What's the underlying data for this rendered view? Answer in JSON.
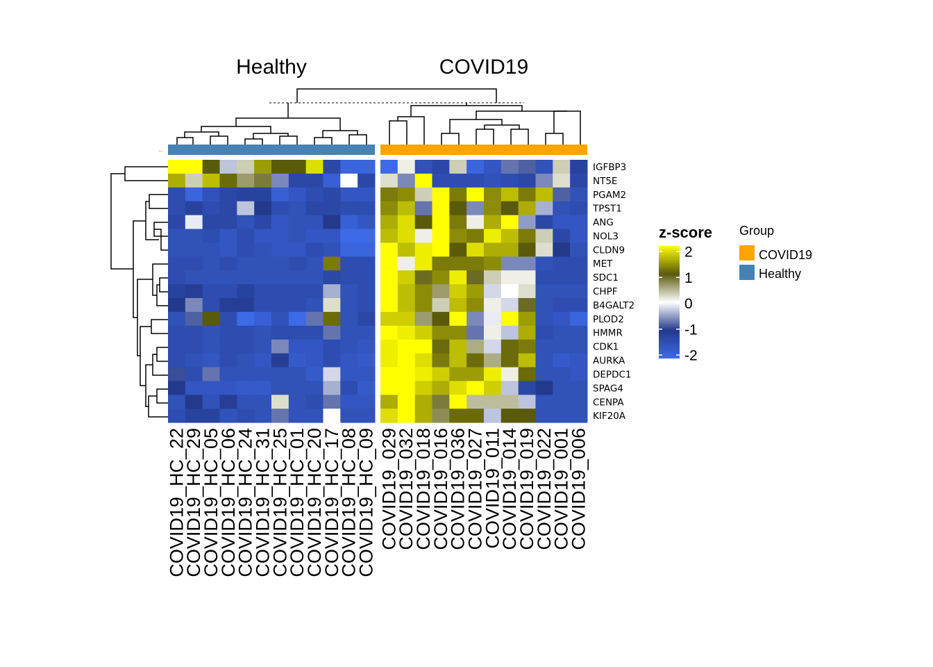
{
  "chart_data": {
    "type": "heatmap",
    "column_groups": [
      {
        "name": "Healthy",
        "color": "#4682B4",
        "columns": [
          "COVID19_HC_22",
          "COVID19_HC_29",
          "COVID19_HC_05",
          "COVID19_HC_06",
          "COVID19_HC_24",
          "COVID19_HC_31",
          "COVID19_HC_25",
          "COVID19_HC_01",
          "COVID19_HC_20",
          "COVID19_HC_17",
          "COVID19_HC_08",
          "COVID19_HC_09"
        ],
        "column_labels": [
          "COVID19_HC_22",
          "COVID19_HC_29",
          "COVID19_HC_05",
          "COVID19_HC_06",
          "COVID19_HC_24",
          "COVID19_HC_31",
          "COVID19_HC_25",
          "COVID19_HC_01",
          "COVID19_HC_20",
          "COVID19_HC_17",
          "COVID19_HC_08",
          "COVID19_HC_09"
        ]
      },
      {
        "name": "COVID19",
        "color": "#FFA500",
        "columns": [
          "COVID19_029",
          "COVID19_032",
          "COVID19_018",
          "COVID19_016",
          "COVID19_036",
          "COVID19_027",
          "COVID19_011",
          "COVID19_014",
          "COVID19_019",
          "COVID19_022",
          "COVID19_001",
          "COVID19_006"
        ],
        "column_labels": [
          "COVID19_029",
          "COVID19_032",
          "COVID19_018",
          "COVID19_016",
          "COVID19_036",
          "COVID19_027",
          "COVID19_011",
          "COVID19_014",
          "COVID19_019",
          "COVID19_022",
          "COVID19_001",
          "COVID19_006"
        ]
      }
    ],
    "rows": [
      "IGFBP3",
      "NT5E",
      "PGAM2",
      "TPST1",
      "ANG",
      "NOL3",
      "CLDN9",
      "MET",
      "SDC1",
      "CHPF",
      "B4GALT2",
      "PLOD2",
      "HMMR",
      "CDK1",
      "AURKA",
      "DEPDC1",
      "SPAG4",
      "CENPA",
      "KIF20A"
    ],
    "values_healthy": [
      [
        2.2,
        2.2,
        1.0,
        -0.3,
        0.3,
        1.4,
        1.0,
        1.0,
        1.8,
        -1.3,
        -1.9,
        -1.9
      ],
      [
        1.5,
        0.3,
        1.6,
        1.1,
        0.6,
        0.8,
        -0.6,
        -1.3,
        -1.3,
        -1.8,
        0.0,
        -1.3
      ],
      [
        -1.4,
        -1.9,
        -1.5,
        -1.3,
        -1.2,
        -1.2,
        -1.8,
        -1.6,
        -1.4,
        -1.3,
        -1.6,
        -1.6
      ],
      [
        -1.4,
        -1.2,
        -1.4,
        -1.3,
        -0.3,
        -1.0,
        -1.4,
        -1.5,
        -1.3,
        -1.3,
        -1.4,
        -1.4
      ],
      [
        -1.3,
        -0.1,
        -1.3,
        -1.3,
        -1.5,
        -1.3,
        -1.6,
        -1.5,
        -1.5,
        -1.0,
        -1.8,
        -1.6
      ],
      [
        -1.5,
        -1.5,
        -1.4,
        -1.6,
        -1.4,
        -1.6,
        -1.6,
        -1.5,
        -1.6,
        -1.6,
        -2.0,
        -2.0
      ],
      [
        -1.5,
        -1.5,
        -1.5,
        -1.6,
        -1.4,
        -1.5,
        -1.6,
        -1.6,
        -1.4,
        -1.5,
        -1.9,
        -1.9
      ],
      [
        -1.4,
        -1.4,
        -1.5,
        -1.4,
        -1.5,
        -1.5,
        -1.5,
        -1.4,
        -1.5,
        1.2,
        -1.4,
        -1.4
      ],
      [
        -1.4,
        -1.5,
        -1.5,
        -1.5,
        -1.5,
        -1.5,
        -1.5,
        -1.5,
        -1.5,
        -1.3,
        -1.4,
        -1.4
      ],
      [
        -1.2,
        -1.1,
        -1.4,
        -1.4,
        -1.2,
        -1.4,
        -1.4,
        -1.4,
        -1.4,
        -0.4,
        -1.5,
        -1.4
      ],
      [
        -1.0,
        -0.6,
        -1.4,
        -1.1,
        -1.1,
        -1.4,
        -1.4,
        -1.4,
        -1.5,
        0.2,
        -1.5,
        -1.4
      ],
      [
        -1.5,
        -0.8,
        1.0,
        -1.4,
        -2.0,
        -1.8,
        -1.5,
        -2.0,
        -0.7,
        1.1,
        -1.5,
        -1.3
      ],
      [
        -1.4,
        -1.4,
        -1.5,
        -1.4,
        -1.4,
        -1.5,
        -1.4,
        -1.4,
        -1.4,
        -0.7,
        -1.5,
        -1.5
      ],
      [
        -1.4,
        -1.4,
        -1.5,
        -1.4,
        -1.4,
        -1.5,
        -0.6,
        -1.6,
        -1.6,
        -1.4,
        -1.5,
        -1.6
      ],
      [
        -1.4,
        -1.5,
        -1.6,
        -1.4,
        -1.5,
        -1.6,
        -1.1,
        -1.7,
        -1.6,
        -1.4,
        -1.6,
        -1.7
      ],
      [
        -0.9,
        -1.4,
        -0.7,
        -1.5,
        -1.5,
        -1.5,
        -1.5,
        -1.5,
        -1.7,
        -0.2,
        -1.6,
        -1.6
      ],
      [
        -1.0,
        -1.6,
        -1.6,
        -1.6,
        -1.7,
        -1.7,
        -1.5,
        -1.5,
        -1.5,
        -0.4,
        -1.4,
        -1.7
      ],
      [
        -1.5,
        -1.0,
        -1.5,
        -1.1,
        -1.5,
        -1.5,
        0.2,
        -1.5,
        -1.4,
        -0.7,
        -1.6,
        -1.6
      ],
      [
        -1.4,
        -1.2,
        -1.2,
        -1.5,
        -1.4,
        -1.5,
        -0.7,
        -1.5,
        -1.5,
        0.0,
        -1.5,
        -1.5
      ]
    ],
    "values_covid": [
      [
        -2.0,
        0.1,
        -1.5,
        -1.3,
        0.3,
        -1.9,
        -1.6,
        -0.7,
        -0.8,
        -1.5,
        0.3,
        -1.2
      ],
      [
        0.2,
        -0.6,
        2.2,
        -1.4,
        -1.4,
        -1.4,
        -1.5,
        -1.4,
        -1.3,
        -0.6,
        0.2,
        -1.3
      ],
      [
        1.2,
        1.3,
        0.3,
        2.4,
        1.2,
        2.4,
        1.3,
        1.6,
        1.2,
        1.6,
        -0.8,
        -1.5
      ],
      [
        1.3,
        1.6,
        -0.7,
        2.4,
        1.0,
        -0.6,
        1.3,
        1.0,
        1.5,
        -0.4,
        -1.5,
        -1.4
      ],
      [
        1.5,
        1.8,
        1.0,
        2.4,
        1.2,
        0.1,
        1.5,
        2.2,
        -0.5,
        -1.3,
        -1.6,
        -1.6
      ],
      [
        1.6,
        1.8,
        0.1,
        2.4,
        1.3,
        1.2,
        1.9,
        1.6,
        1.2,
        0.3,
        -1.3,
        -1.6
      ],
      [
        2.2,
        1.6,
        1.9,
        2.4,
        1.0,
        1.8,
        1.5,
        1.5,
        1.0,
        0.2,
        -1.0,
        -1.5
      ],
      [
        2.2,
        0.1,
        1.9,
        1.2,
        1.2,
        1.2,
        1.3,
        -0.6,
        -0.6,
        -1.5,
        -1.4,
        -1.4
      ],
      [
        2.2,
        1.7,
        0.9,
        1.3,
        1.9,
        0.9,
        0.3,
        0.1,
        0.1,
        -1.4,
        -1.4,
        -1.4
      ],
      [
        2.2,
        1.6,
        1.3,
        0.6,
        1.7,
        1.4,
        -0.2,
        0.0,
        0.2,
        -1.5,
        -1.5,
        -1.5
      ],
      [
        2.2,
        1.6,
        1.3,
        0.3,
        1.6,
        1.3,
        0.1,
        -0.2,
        0.9,
        -1.5,
        -1.4,
        -1.4
      ],
      [
        1.7,
        1.7,
        0.6,
        1.0,
        2.0,
        -0.6,
        -0.1,
        2.1,
        1.4,
        -1.5,
        -1.6,
        -1.9
      ],
      [
        2.2,
        1.9,
        1.7,
        1.3,
        1.3,
        -0.7,
        0.1,
        -0.3,
        1.5,
        -1.4,
        -1.5,
        -1.5
      ],
      [
        1.9,
        2.3,
        2.4,
        1.1,
        1.6,
        0.5,
        -0.2,
        1.1,
        1.2,
        -1.5,
        -1.5,
        -1.5
      ],
      [
        1.9,
        2.3,
        1.8,
        1.2,
        1.6,
        1.1,
        0.5,
        1.1,
        1.6,
        -1.5,
        -1.7,
        -1.6
      ],
      [
        2.0,
        2.2,
        1.9,
        1.7,
        1.4,
        1.4,
        1.9,
        0.1,
        1.1,
        -1.5,
        -1.5,
        -1.6
      ],
      [
        2.0,
        2.2,
        1.7,
        1.5,
        1.8,
        2.0,
        1.7,
        -0.3,
        -1.3,
        -1.0,
        -1.5,
        -1.5
      ],
      [
        1.5,
        2.2,
        1.5,
        0.8,
        2.4,
        0.4,
        0.4,
        0.4,
        -0.3,
        -1.5,
        -1.5,
        -1.5
      ],
      [
        1.8,
        2.2,
        1.5,
        0.7,
        1.1,
        1.1,
        -0.3,
        1.0,
        1.0,
        -1.5,
        -1.5,
        -1.5
      ]
    ],
    "color_scale": {
      "title": "z-score",
      "ticks": [
        2,
        1,
        0,
        -1,
        -2
      ],
      "tick_labels": [
        "2",
        "1",
        "0",
        "-1",
        "-2"
      ],
      "stops": [
        {
          "value": -2,
          "color": "#3D6AE6"
        },
        {
          "value": -1,
          "color": "#23398C"
        },
        {
          "value": 0,
          "color": "#FFFFFF"
        },
        {
          "value": 1,
          "color": "#5A5A0B"
        },
        {
          "value": 2,
          "color": "#FFFF00"
        }
      ]
    },
    "legend": {
      "title": "Group",
      "placement": "right",
      "items": [
        {
          "label": "COVID19",
          "color": "#FFA500"
        },
        {
          "label": "Healthy",
          "color": "#4682B4"
        }
      ]
    },
    "annotation_bar_label": "...",
    "row_dendrogram": true,
    "column_dendrogram": true
  }
}
